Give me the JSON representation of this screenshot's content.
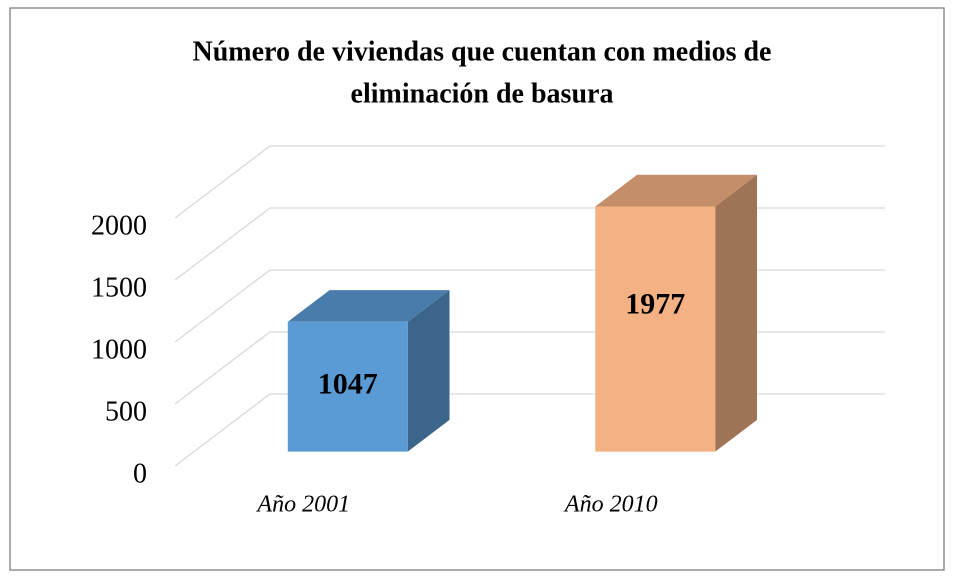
{
  "chart_data": {
    "type": "bar3d",
    "title": [
      "Número de viviendas que cuentan con medios de",
      "eliminación de basura"
    ],
    "categories": [
      "Año 2001",
      "Año 2010"
    ],
    "values": [
      1047,
      1977
    ],
    "colors": [
      "#5b9bd5",
      "#f4b183"
    ],
    "ylim": [
      0,
      2000
    ],
    "yticks": [
      0,
      500,
      1000,
      1500,
      2000
    ],
    "grid": true
  }
}
